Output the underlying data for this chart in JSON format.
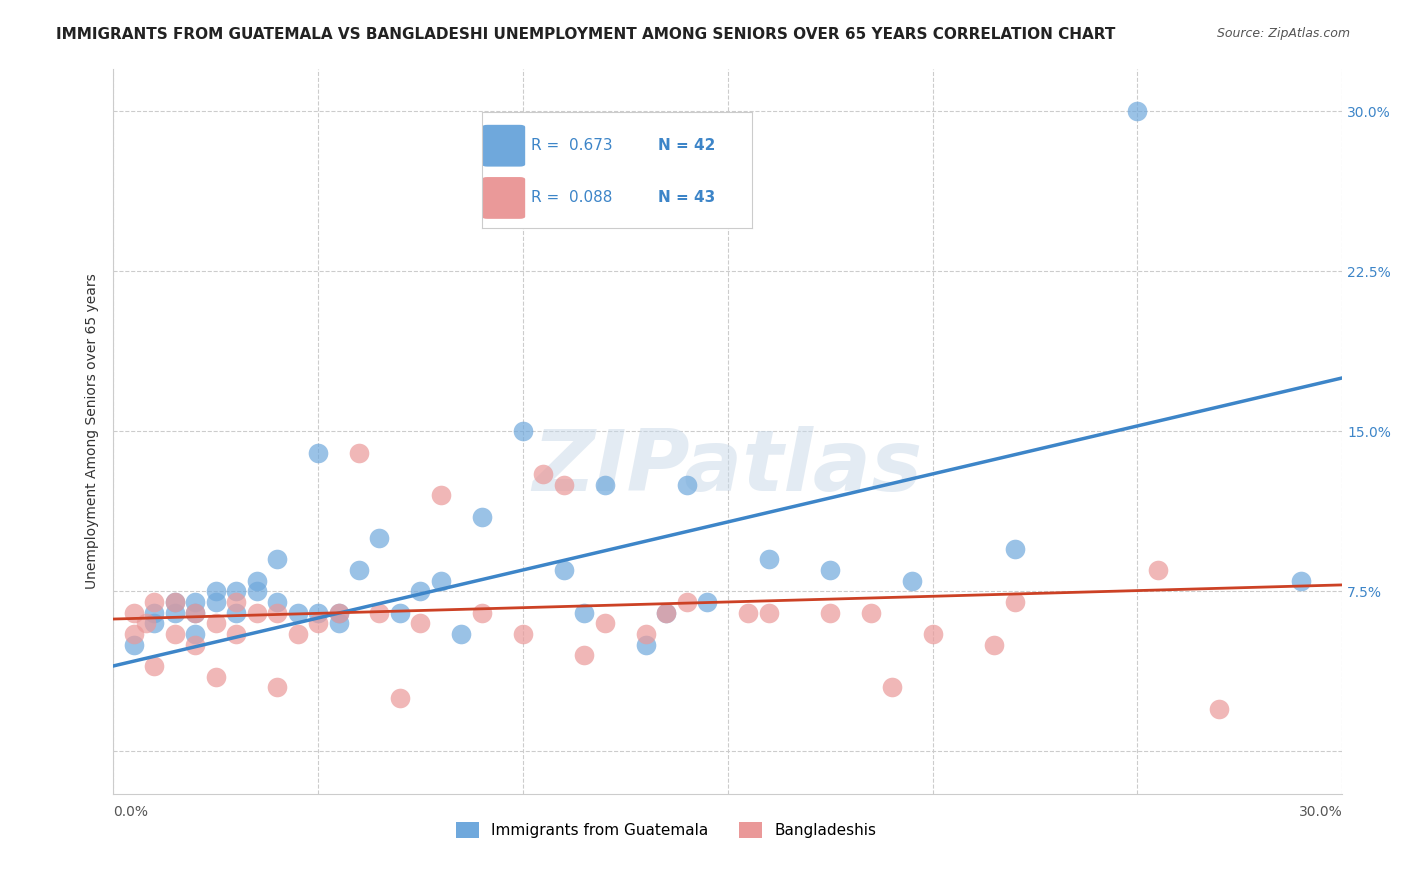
{
  "title": "IMMIGRANTS FROM GUATEMALA VS BANGLADESHI UNEMPLOYMENT AMONG SENIORS OVER 65 YEARS CORRELATION CHART",
  "source": "Source: ZipAtlas.com",
  "ylabel": "Unemployment Among Seniors over 65 years",
  "xlim": [
    0.0,
    0.3
  ],
  "ylim": [
    -0.02,
    0.32
  ],
  "yticks": [
    0.0,
    0.075,
    0.15,
    0.225,
    0.3
  ],
  "ytick_labels": [
    "",
    "7.5%",
    "15.0%",
    "22.5%",
    "30.0%"
  ],
  "xticks": [
    0.0,
    0.05,
    0.1,
    0.15,
    0.2,
    0.25,
    0.3
  ],
  "legend1_R": "0.673",
  "legend1_N": "42",
  "legend2_R": "0.088",
  "legend2_N": "43",
  "blue_color": "#6fa8dc",
  "pink_color": "#ea9999",
  "blue_line_color": "#3d85c8",
  "pink_line_color": "#cc4125",
  "blue_scatter_x": [
    0.005,
    0.01,
    0.01,
    0.015,
    0.015,
    0.02,
    0.02,
    0.02,
    0.025,
    0.025,
    0.03,
    0.03,
    0.035,
    0.035,
    0.04,
    0.04,
    0.045,
    0.05,
    0.05,
    0.055,
    0.055,
    0.06,
    0.065,
    0.07,
    0.075,
    0.08,
    0.085,
    0.09,
    0.1,
    0.11,
    0.115,
    0.12,
    0.13,
    0.135,
    0.14,
    0.145,
    0.16,
    0.175,
    0.195,
    0.22,
    0.25,
    0.29
  ],
  "blue_scatter_y": [
    0.05,
    0.06,
    0.065,
    0.065,
    0.07,
    0.055,
    0.065,
    0.07,
    0.07,
    0.075,
    0.065,
    0.075,
    0.075,
    0.08,
    0.07,
    0.09,
    0.065,
    0.065,
    0.14,
    0.06,
    0.065,
    0.085,
    0.1,
    0.065,
    0.075,
    0.08,
    0.055,
    0.11,
    0.15,
    0.085,
    0.065,
    0.125,
    0.05,
    0.065,
    0.125,
    0.07,
    0.09,
    0.085,
    0.08,
    0.095,
    0.3,
    0.08
  ],
  "pink_scatter_x": [
    0.005,
    0.005,
    0.008,
    0.01,
    0.01,
    0.015,
    0.015,
    0.02,
    0.02,
    0.025,
    0.025,
    0.03,
    0.03,
    0.035,
    0.04,
    0.04,
    0.045,
    0.05,
    0.055,
    0.06,
    0.065,
    0.07,
    0.075,
    0.08,
    0.09,
    0.1,
    0.105,
    0.11,
    0.115,
    0.12,
    0.13,
    0.135,
    0.14,
    0.155,
    0.16,
    0.175,
    0.185,
    0.19,
    0.2,
    0.215,
    0.22,
    0.255,
    0.27
  ],
  "pink_scatter_y": [
    0.055,
    0.065,
    0.06,
    0.04,
    0.07,
    0.055,
    0.07,
    0.05,
    0.065,
    0.06,
    0.035,
    0.055,
    0.07,
    0.065,
    0.065,
    0.03,
    0.055,
    0.06,
    0.065,
    0.14,
    0.065,
    0.025,
    0.06,
    0.12,
    0.065,
    0.055,
    0.13,
    0.125,
    0.045,
    0.06,
    0.055,
    0.065,
    0.07,
    0.065,
    0.065,
    0.065,
    0.065,
    0.03,
    0.055,
    0.05,
    0.07,
    0.085,
    0.02
  ],
  "blue_line_x": [
    0.0,
    0.3
  ],
  "blue_line_y": [
    0.04,
    0.175
  ],
  "pink_line_x": [
    0.0,
    0.3
  ],
  "pink_line_y": [
    0.062,
    0.078
  ],
  "background_color": "#ffffff",
  "grid_color": "#cccccc",
  "title_fontsize": 11,
  "axis_label_fontsize": 10,
  "tick_fontsize": 10
}
